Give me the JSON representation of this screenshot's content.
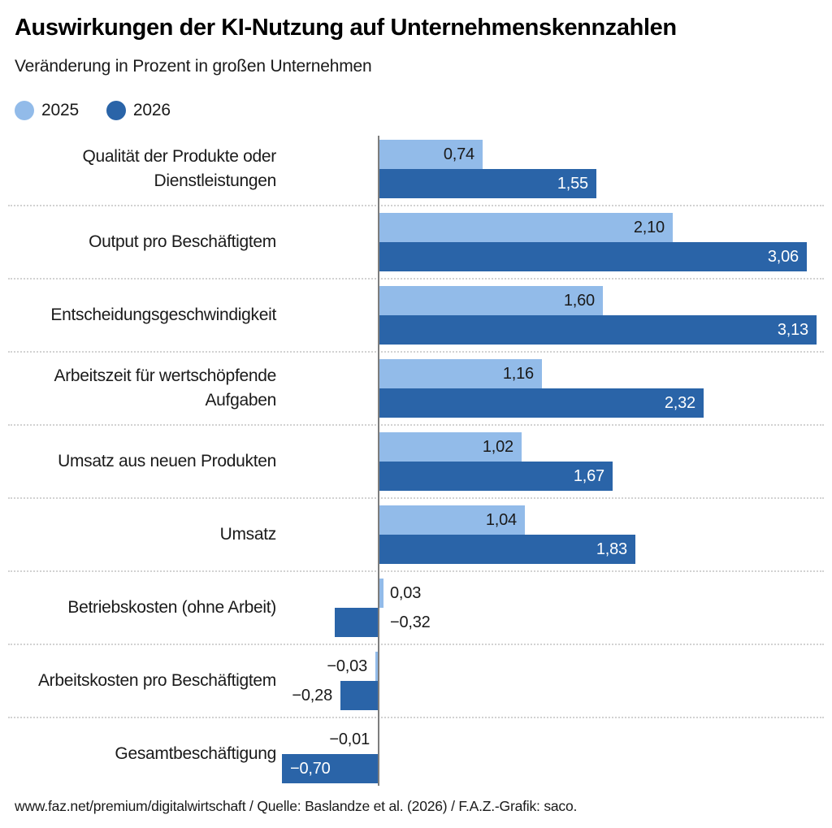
{
  "header": {
    "title": "Auswirkungen der KI-Nutzung auf Unternehmenskennzahlen",
    "subtitle": "Veränderung in Prozent in großen Unternehmen"
  },
  "chart_data": {
    "type": "bar",
    "orientation": "horizontal",
    "title": "Auswirkungen der KI-Nutzung auf Unternehmenskennzahlen",
    "subtitle": "Veränderung in Prozent in großen Unternehmen",
    "unit": "Prozent",
    "xlim": [
      -0.74,
      3.24
    ],
    "grid": false,
    "legend_position": "top-left",
    "zero_axis_color": "#7d7d7d",
    "separator_color": "#d2d2d2",
    "text_color": "#1a1a1a",
    "categories": [
      "Qualität der Produkte oder\nDienstleistungen",
      "Output pro Beschäftigtem",
      "Entscheidungsgeschwindigkeit",
      "Arbeitszeit für wertschöpfende\nAufgaben",
      "Umsatz aus neuen Produkten",
      "Umsatz",
      "Betriebskosten (ohne Arbeit)",
      "Arbeitskosten pro Beschäftigtem",
      "Gesamtbeschäftigung"
    ],
    "series": [
      {
        "name": "2025",
        "color": "#92bbe9",
        "inside_label_color": "#1a1a1a",
        "values": [
          0.74,
          2.1,
          1.6,
          1.16,
          1.02,
          1.04,
          0.03,
          -0.03,
          -0.01
        ],
        "labels": [
          "0,74",
          "2,10",
          "1,60",
          "1,16",
          "1,02",
          "1,04",
          "0,03",
          "−0,03",
          "−0,01"
        ],
        "label_positions": [
          "in-right",
          "in-right",
          "in-right",
          "in-right",
          "in-right",
          "in-right",
          "out-right",
          "out-left",
          "out-left"
        ]
      },
      {
        "name": "2026",
        "color": "#2a64a8",
        "inside_label_color": "#ffffff",
        "values": [
          1.55,
          3.06,
          3.13,
          2.32,
          1.67,
          1.83,
          -0.32,
          -0.28,
          -0.7
        ],
        "labels": [
          "1,55",
          "3,06",
          "3,13",
          "2,32",
          "1,67",
          "1,83",
          "−0,32",
          "−0,28",
          "−0,70"
        ],
        "label_positions": [
          "in-right",
          "in-right",
          "in-right",
          "in-right",
          "in-right",
          "in-right",
          "out-right",
          "out-left",
          "in-left"
        ]
      }
    ],
    "outside_label_color": "#1a1a1a"
  },
  "footer": {
    "text": "www.faz.net/premium/digitalwirtschaft / Quelle: Baslandze et al. (2026) / F.A.Z.-Grafik: saco."
  }
}
